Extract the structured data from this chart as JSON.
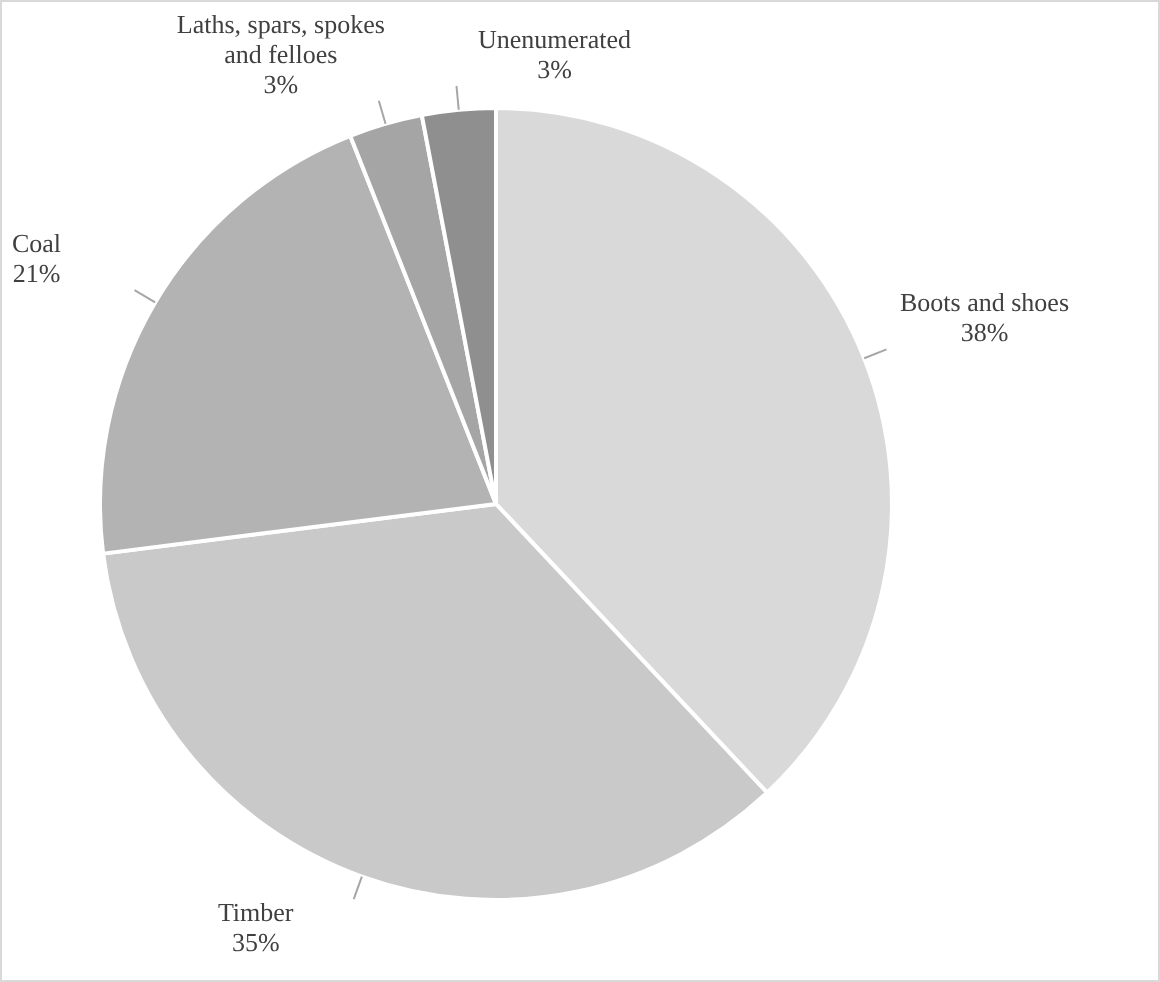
{
  "chart_data": {
    "type": "pie",
    "categories": [
      "Boots and shoes",
      "Timber",
      "Coal",
      "Laths, spars, spokes and felloes",
      "Unenumerated"
    ],
    "values": [
      38,
      35,
      21,
      3,
      3
    ],
    "value_labels": [
      "38%",
      "35%",
      "21%",
      "3%",
      "3%"
    ],
    "colors": [
      "#d9d9d9",
      "#c9c9c9",
      "#b3b3b3",
      "#a5a5a5",
      "#8f8f8f"
    ]
  }
}
